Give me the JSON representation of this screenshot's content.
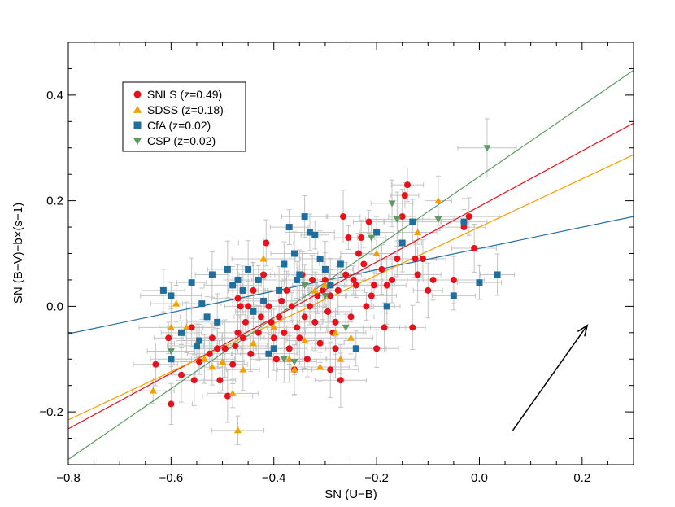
{
  "chart_data": {
    "type": "scatter",
    "xlabel": "SN (U−B)",
    "ylabel": "SN (B−V)−b×(s−1)",
    "xlim": [
      -0.8,
      0.3
    ],
    "ylim": [
      -0.3,
      0.5
    ],
    "x_ticks": [
      -0.8,
      -0.6,
      -0.4,
      -0.2,
      0.0,
      0.2
    ],
    "x_tick_labels": [
      "−0.8",
      "−0.6",
      "−0.4",
      "−0.2",
      "0.0",
      "0.2"
    ],
    "y_ticks": [
      -0.2,
      0.0,
      0.2,
      0.4
    ],
    "y_tick_labels": [
      "−0.2",
      "0.0",
      "0.2",
      "0.4"
    ],
    "legend_position": "top-left",
    "grid": false,
    "series": [
      {
        "name": "SNLS (z=0.49)",
        "marker": "circle",
        "color": "#e8101a",
        "points": [
          [
            -0.63,
            -0.11
          ],
          [
            -0.605,
            -0.06
          ],
          [
            -0.6,
            -0.185
          ],
          [
            -0.58,
            -0.13
          ],
          [
            -0.56,
            -0.04
          ],
          [
            -0.555,
            -0.14
          ],
          [
            -0.545,
            -0.105
          ],
          [
            -0.525,
            -0.09
          ],
          [
            -0.52,
            -0.06
          ],
          [
            -0.51,
            -0.08
          ],
          [
            -0.505,
            -0.14
          ],
          [
            -0.495,
            -0.08
          ],
          [
            -0.48,
            -0.11
          ],
          [
            -0.475,
            -0.075
          ],
          [
            -0.47,
            -0.05
          ],
          [
            -0.47,
            0.015
          ],
          [
            -0.465,
            0.0
          ],
          [
            -0.46,
            -0.06
          ],
          [
            -0.455,
            -0.03
          ],
          [
            -0.45,
            0.0
          ],
          [
            -0.445,
            -0.09
          ],
          [
            -0.44,
            0.03
          ],
          [
            -0.43,
            -0.05
          ],
          [
            -0.425,
            -0.02
          ],
          [
            -0.42,
            0.06
          ],
          [
            -0.415,
            0.12
          ],
          [
            -0.41,
            0.0
          ],
          [
            -0.405,
            -0.03
          ],
          [
            -0.4,
            -0.06
          ],
          [
            -0.395,
            -0.1
          ],
          [
            -0.39,
            -0.02
          ],
          [
            -0.385,
            0.01
          ],
          [
            -0.38,
            -0.05
          ],
          [
            -0.375,
            0.03
          ],
          [
            -0.37,
            -0.08
          ],
          [
            -0.365,
            0.0
          ],
          [
            -0.36,
            -0.12
          ],
          [
            -0.355,
            -0.04
          ],
          [
            -0.35,
            -0.06
          ],
          [
            -0.345,
            0.06
          ],
          [
            -0.34,
            -0.02
          ],
          [
            -0.335,
            -0.1
          ],
          [
            -0.33,
            0.0
          ],
          [
            -0.325,
            0.05
          ],
          [
            -0.32,
            -0.03
          ],
          [
            -0.315,
            0.02
          ],
          [
            -0.31,
            -0.07
          ],
          [
            -0.305,
            0.03
          ],
          [
            -0.3,
            0.05
          ],
          [
            -0.295,
            -0.01
          ],
          [
            -0.29,
            0.02
          ],
          [
            -0.285,
            -0.05
          ],
          [
            -0.28,
            -0.03
          ],
          [
            -0.275,
            0.03
          ],
          [
            -0.27,
            -0.14
          ],
          [
            -0.265,
            0.17
          ],
          [
            -0.26,
            0.06
          ],
          [
            -0.255,
            0.13
          ],
          [
            -0.25,
            -0.02
          ],
          [
            -0.245,
            0.05
          ],
          [
            -0.24,
            0.04
          ],
          [
            -0.235,
            0.1
          ],
          [
            -0.23,
            0.13
          ],
          [
            -0.225,
            0.08
          ],
          [
            -0.22,
            0.0
          ],
          [
            -0.215,
            0.16
          ],
          [
            -0.21,
            0.02
          ],
          [
            -0.205,
            0.04
          ],
          [
            -0.2,
            -0.08
          ],
          [
            -0.19,
            0.07
          ],
          [
            -0.185,
            -0.04
          ],
          [
            -0.18,
            0.04
          ],
          [
            -0.17,
            0.05
          ],
          [
            -0.16,
            0.09
          ],
          [
            -0.15,
            0.17
          ],
          [
            -0.145,
            0.21
          ],
          [
            -0.14,
            0.23
          ],
          [
            -0.13,
            -0.04
          ],
          [
            -0.125,
            0.09
          ],
          [
            -0.12,
            0.06
          ],
          [
            -0.11,
            0.09
          ],
          [
            -0.1,
            0.03
          ],
          [
            -0.09,
            0.05
          ],
          [
            -0.05,
            0.05
          ],
          [
            -0.03,
            0.15
          ],
          [
            -0.02,
            0.17
          ],
          [
            -0.01,
            0.11
          ],
          [
            -0.29,
            -0.12
          ],
          [
            -0.28,
            -0.08
          ],
          [
            -0.49,
            -0.17
          ]
        ]
      },
      {
        "name": "SDSS (z=0.18)",
        "marker": "triangle-up",
        "color": "#f5a000",
        "points": [
          [
            -0.635,
            -0.16
          ],
          [
            -0.6,
            -0.04
          ],
          [
            -0.59,
            0.005
          ],
          [
            -0.57,
            -0.04
          ],
          [
            -0.55,
            -0.07
          ],
          [
            -0.535,
            -0.1
          ],
          [
            -0.52,
            -0.115
          ],
          [
            -0.5,
            -0.105
          ],
          [
            -0.48,
            -0.165
          ],
          [
            -0.47,
            -0.235
          ],
          [
            -0.46,
            -0.12
          ],
          [
            -0.44,
            -0.07
          ],
          [
            -0.42,
            0.09
          ],
          [
            -0.4,
            -0.04
          ],
          [
            -0.37,
            -0.1
          ],
          [
            -0.36,
            -0.12
          ],
          [
            -0.34,
            -0.065
          ],
          [
            -0.32,
            0.03
          ],
          [
            -0.31,
            -0.115
          ],
          [
            -0.3,
            0.04
          ],
          [
            -0.28,
            -0.05
          ],
          [
            -0.27,
            -0.1
          ],
          [
            -0.25,
            -0.06
          ],
          [
            -0.2,
            0.1
          ],
          [
            -0.12,
            0.14
          ],
          [
            -0.08,
            0.2
          ]
        ]
      },
      {
        "name": "CfA (z=0.02)",
        "marker": "square",
        "color": "#1f6ea0",
        "points": [
          [
            -0.615,
            0.03
          ],
          [
            -0.6,
            0.02
          ],
          [
            -0.6,
            -0.1
          ],
          [
            -0.58,
            -0.05
          ],
          [
            -0.56,
            0.045
          ],
          [
            -0.55,
            -0.075
          ],
          [
            -0.545,
            -0.065
          ],
          [
            -0.54,
            0.005
          ],
          [
            -0.53,
            -0.02
          ],
          [
            -0.52,
            0.06
          ],
          [
            -0.51,
            -0.03
          ],
          [
            -0.49,
            0.07
          ],
          [
            -0.48,
            0.04
          ],
          [
            -0.47,
            0.05
          ],
          [
            -0.46,
            0.03
          ],
          [
            -0.45,
            0.07
          ],
          [
            -0.44,
            -0.01
          ],
          [
            -0.43,
            0.05
          ],
          [
            -0.42,
            0.01
          ],
          [
            -0.41,
            -0.09
          ],
          [
            -0.4,
            -0.08
          ],
          [
            -0.39,
            0.03
          ],
          [
            -0.38,
            0.08
          ],
          [
            -0.37,
            0.15
          ],
          [
            -0.36,
            0.1
          ],
          [
            -0.355,
            0.05
          ],
          [
            -0.35,
            0.06
          ],
          [
            -0.34,
            0.17
          ],
          [
            -0.33,
            0.14
          ],
          [
            -0.32,
            0.135
          ],
          [
            -0.31,
            0.09
          ],
          [
            -0.3,
            0.07
          ],
          [
            -0.29,
            0.04
          ],
          [
            -0.27,
            0.08
          ],
          [
            -0.24,
            -0.08
          ],
          [
            -0.2,
            0.14
          ],
          [
            -0.18,
            0.0
          ],
          [
            -0.15,
            0.12
          ],
          [
            -0.13,
            0.16
          ],
          [
            -0.03,
            0.16
          ],
          [
            -0.05,
            0.02
          ],
          [
            0.0,
            0.045
          ],
          [
            0.035,
            0.06
          ]
        ]
      },
      {
        "name": "CSP (z=0.02)",
        "marker": "triangle-down",
        "color": "#5e9a62",
        "points": [
          [
            -0.6,
            -0.085
          ],
          [
            -0.38,
            -0.1
          ],
          [
            -0.36,
            -0.105
          ],
          [
            -0.34,
            0.04
          ],
          [
            -0.3,
            0.02
          ],
          [
            -0.26,
            -0.04
          ],
          [
            -0.21,
            0.13
          ],
          [
            -0.17,
            0.195
          ],
          [
            -0.16,
            0.165
          ],
          [
            -0.08,
            0.165
          ],
          [
            0.015,
            0.3
          ]
        ]
      }
    ],
    "fit_lines": [
      {
        "color": "#1f6ea0",
        "x": [
          -0.8,
          0.3
        ],
        "y": [
          -0.052,
          0.17
        ]
      },
      {
        "color": "#e8101a",
        "x": [
          -0.8,
          0.3
        ],
        "y": [
          -0.232,
          0.347
        ]
      },
      {
        "color": "#f5a000",
        "x": [
          -0.8,
          0.3
        ],
        "y": [
          -0.215,
          0.287
        ]
      },
      {
        "color": "#5e9a62",
        "x": [
          -0.8,
          0.3
        ],
        "y": [
          -0.29,
          0.447
        ]
      }
    ],
    "arrow": {
      "x": [
        0.065,
        0.21
      ],
      "y": [
        -0.235,
        -0.036
      ],
      "color": "#000000"
    }
  }
}
